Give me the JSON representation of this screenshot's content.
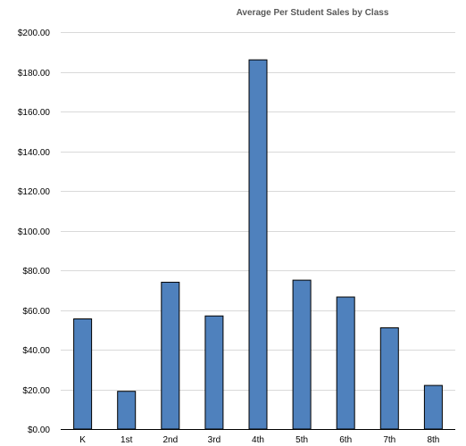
{
  "chart_data": {
    "type": "bar",
    "title": "Average Per Student Sales by Class",
    "xlabel": "",
    "ylabel": "",
    "categories": [
      "K",
      "1st",
      "2nd",
      "3rd",
      "4th",
      "5th",
      "6th",
      "7th",
      "8th"
    ],
    "values": [
      55.5,
      19.0,
      74.0,
      57.0,
      186.0,
      75.0,
      66.5,
      51.0,
      22.0
    ],
    "ylim": [
      0,
      200
    ],
    "yticks": [
      0,
      20,
      40,
      60,
      80,
      100,
      120,
      140,
      160,
      180,
      200
    ],
    "ytick_labels": [
      "$0.00",
      "$20.00",
      "$40.00",
      "$60.00",
      "$80.00",
      "$100.00",
      "$120.00",
      "$140.00",
      "$160.00",
      "$180.00",
      "$200.00"
    ],
    "grid": true,
    "legend": "none",
    "bar_color": "#4f81bd",
    "bar_edge_color": "#000000",
    "grid_color": "#d9d9d9"
  }
}
